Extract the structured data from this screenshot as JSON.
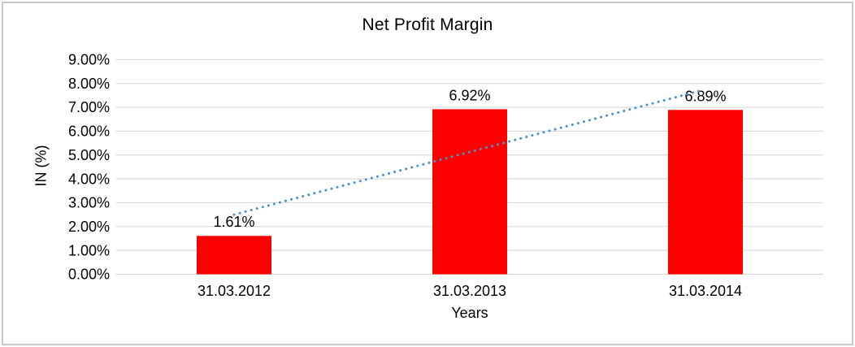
{
  "chart_data": {
    "type": "bar",
    "title": "Net Profit Margin",
    "xlabel": "Years",
    "ylabel": "IN (%)",
    "categories": [
      "31.03.2012",
      "31.03.2013",
      "31.03.2014"
    ],
    "series": [
      {
        "name": "Net Profit Margin",
        "values": [
          1.61,
          6.92,
          6.89
        ]
      }
    ],
    "data_labels": [
      "1.61%",
      "6.92%",
      "6.89%"
    ],
    "y_ticks": [
      "0.00%",
      "1.00%",
      "2.00%",
      "3.00%",
      "4.00%",
      "5.00%",
      "6.00%",
      "7.00%",
      "8.00%",
      "9.00%"
    ],
    "ylim": [
      0,
      9
    ],
    "grid": true,
    "legend": "none",
    "trendline": {
      "kind": "linear",
      "style": "dotted",
      "start_pct": 2.5,
      "end_pct": 7.7,
      "color": "#4e8fd1"
    },
    "colors": {
      "bar": "#ff0000",
      "gridline": "#d9d9d9",
      "text": "#000000",
      "frame_border": "#c8c8c8",
      "background": "#ffffff"
    }
  }
}
